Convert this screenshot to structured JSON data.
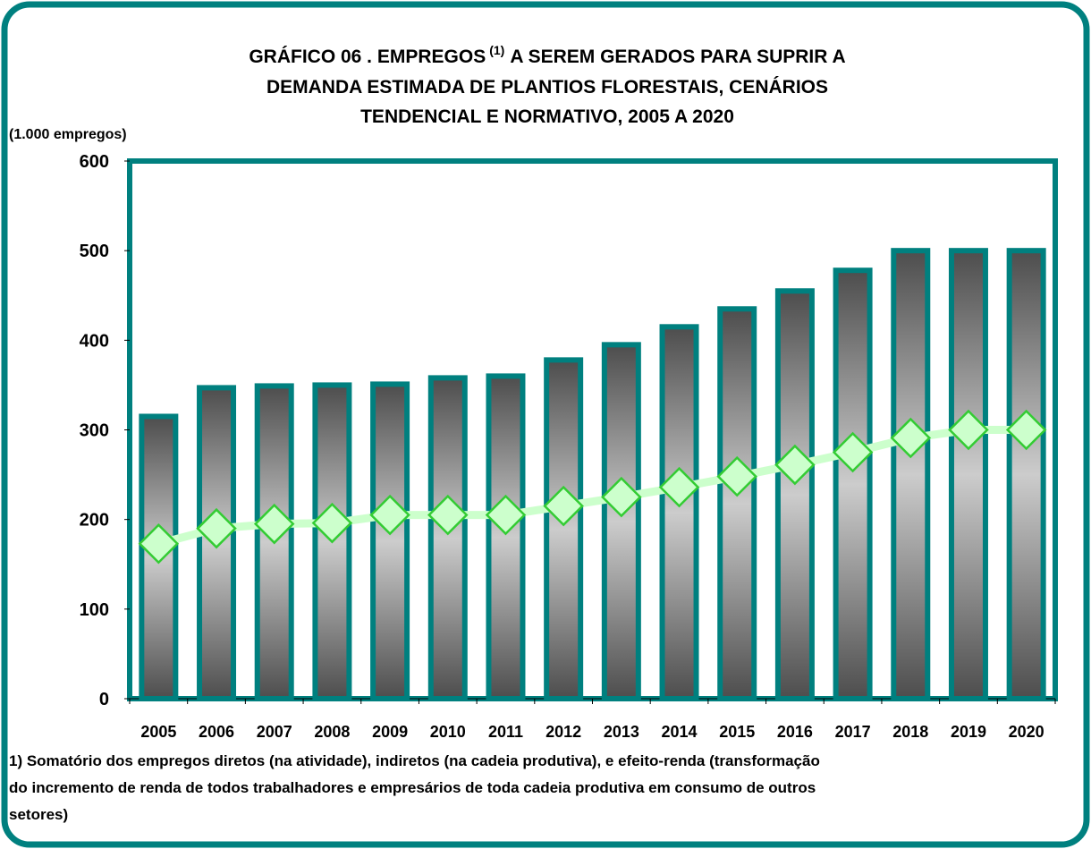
{
  "chart_data": {
    "type": "bar",
    "title": [
      "GRÁFICO 06  . EMPREGOS",
      "(1)",
      "A SEREM GERADOS PARA SUPRIR A",
      "DEMANDA ESTIMADA DE PLANTIOS FLORESTAIS, CENÁRIOS",
      "TENDENCIAL E NORMATIVO, 2005 A 2020"
    ],
    "y_label": "(1.000 empregos)",
    "categories": [
      "2005",
      "2006",
      "2007",
      "2008",
      "2009",
      "2010",
      "2011",
      "2012",
      "2013",
      "2014",
      "2015",
      "2016",
      "2017",
      "2018",
      "2019",
      "2020"
    ],
    "series": [
      {
        "type": "bar",
        "color": "#00807f",
        "values": [
          315,
          347,
          349,
          350,
          351,
          358,
          360,
          378,
          395,
          415,
          435,
          455,
          478,
          500,
          500,
          500
        ]
      },
      {
        "type": "line",
        "color": "#ccffcc",
        "values": [
          173,
          190,
          195,
          196,
          205,
          205,
          205,
          215,
          225,
          236,
          248,
          261,
          275,
          291,
          300,
          300
        ]
      }
    ],
    "ylim": [
      0,
      600
    ],
    "yticks": [
      0,
      100,
      200,
      300,
      400,
      500,
      600
    ],
    "footnote": [
      "1) Somatório dos empregos diretos (na atividade), indiretos (na cadeia produtiva), e efeito-renda (transformação",
      "do incremento de renda de todos trabalhadores e empresários de toda cadeia produtiva em consumo de outros",
      "setores)"
    ]
  }
}
